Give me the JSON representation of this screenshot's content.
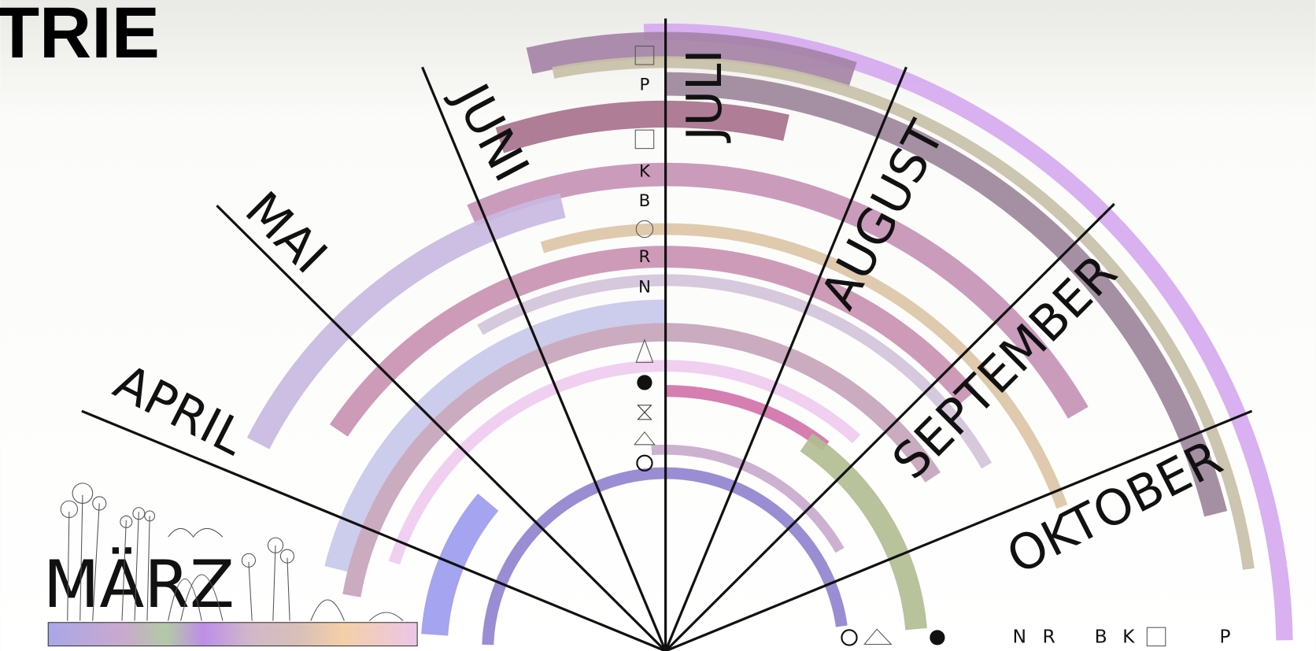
{
  "header": {
    "title_fragment": "TRIE"
  },
  "months": [
    "MÄRZ",
    "APRIL",
    "MAI",
    "JUNI",
    "JULI",
    "AUGUST",
    "SEPTEMBER",
    "OKTOBER"
  ],
  "glyph_column": [
    "P",
    "K",
    "B",
    "R",
    "N"
  ],
  "glyph_row": [
    "N",
    "R",
    "B",
    "K",
    "P"
  ]
}
